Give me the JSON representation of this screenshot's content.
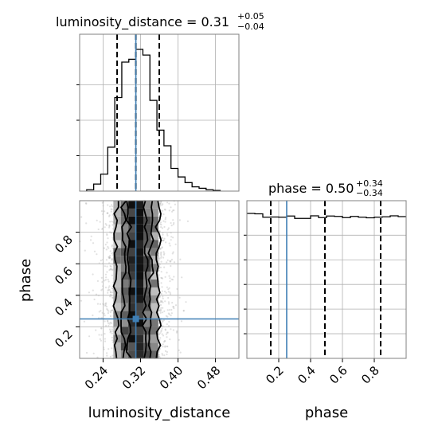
{
  "chart_data": {
    "type": "corner",
    "parameters": [
      "luminosity_distance",
      "phase"
    ],
    "colors": {
      "truth": "#3f7fb5",
      "line": "#000000",
      "frame": "#808080",
      "grid": "#b0b0b0",
      "points": "#bdbdbd"
    },
    "grid": true,
    "marginals": [
      {
        "name": "luminosity_distance",
        "title_main": "luminosity_distance = 0.31",
        "title_plus": "+0.05",
        "title_minus": "−0.04",
        "range": [
          0.19,
          0.53
        ],
        "quantiles": [
          0.27,
          0.31,
          0.36
        ],
        "truth": 0.31,
        "bin_edges": [
          0.205,
          0.22,
          0.235,
          0.25,
          0.265,
          0.28,
          0.295,
          0.31,
          0.325,
          0.34,
          0.355,
          0.37,
          0.385,
          0.4,
          0.415,
          0.43,
          0.445,
          0.46,
          0.475,
          0.49
        ],
        "counts": [
          0.01,
          0.05,
          0.12,
          0.31,
          0.66,
          0.91,
          0.93,
          1.0,
          0.96,
          0.64,
          0.43,
          0.32,
          0.16,
          0.1,
          0.06,
          0.03,
          0.02,
          0.01,
          0.005
        ]
      },
      {
        "name": "phase",
        "title_main": "phase = 0.50",
        "title_plus": "+0.34",
        "title_minus": "−0.34",
        "range": [
          0.0,
          1.0
        ],
        "quantiles": [
          0.15,
          0.49,
          0.84
        ],
        "truth": 0.25,
        "bin_edges": [
          0,
          0.05,
          0.1,
          0.15,
          0.2,
          0.25,
          0.3,
          0.35,
          0.4,
          0.45,
          0.5,
          0.55,
          0.6,
          0.65,
          0.7,
          0.75,
          0.8,
          0.85,
          0.9,
          0.95,
          1.0
        ],
        "counts": [
          1.0,
          0.98,
          0.81,
          0.82,
          0.81,
          0.87,
          0.75,
          0.75,
          0.88,
          0.79,
          0.87,
          0.85,
          0.79,
          0.85,
          0.81,
          0.78,
          0.81,
          0.83,
          0.88,
          0.84
        ]
      }
    ],
    "joint": {
      "x": "luminosity_distance",
      "y": "phase",
      "xlim": [
        0.19,
        0.53
      ],
      "ylim": [
        0.0,
        1.0
      ],
      "truth": [
        0.31,
        0.25
      ],
      "contour_levels": 4
    },
    "ticks": {
      "luminosity_distance": [
        "0.24",
        "0.32",
        "0.40",
        "0.48"
      ],
      "phase": [
        "0.2",
        "0.4",
        "0.6",
        "0.8"
      ]
    },
    "xlabels": [
      "luminosity_distance",
      "phase"
    ],
    "ylabel": "phase"
  }
}
